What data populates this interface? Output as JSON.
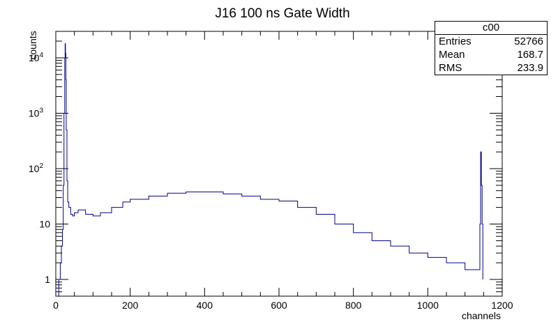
{
  "chart_data": {
    "type": "line",
    "title": "J16 100 ns Gate Width",
    "xlabel": "channels",
    "ylabel": "counts",
    "xlim": [
      0,
      1200
    ],
    "ylim": [
      0.5,
      30000
    ],
    "yscale": "log",
    "x_ticks": [
      0,
      200,
      400,
      600,
      800,
      1000,
      1200
    ],
    "y_ticks": [
      {
        "value": 1,
        "base": "1",
        "exp": ""
      },
      {
        "value": 10,
        "base": "10",
        "exp": ""
      },
      {
        "value": 100,
        "base": "10",
        "exp": "2"
      },
      {
        "value": 1000,
        "base": "10",
        "exp": "3"
      },
      {
        "value": 10000,
        "base": "10",
        "exp": "4"
      }
    ],
    "line_color": "#00008b",
    "series": [
      {
        "x": [
          8,
          12,
          15,
          18,
          20,
          22,
          24,
          25,
          26,
          27,
          28,
          30,
          32,
          35,
          40,
          45,
          50,
          60,
          80,
          100,
          120,
          150,
          180,
          200,
          250,
          300,
          350,
          400,
          450,
          500,
          550,
          600,
          650,
          700,
          750,
          800,
          850,
          900,
          950,
          1000,
          1050,
          1100,
          1140,
          1142,
          1144,
          1146,
          1148
        ],
        "y": [
          1,
          2,
          4,
          8,
          50,
          1000,
          10000,
          18000,
          12000,
          4000,
          500,
          60,
          25,
          20,
          15,
          14,
          16,
          18,
          15,
          14,
          16,
          20,
          25,
          28,
          32,
          36,
          38,
          38,
          35,
          32,
          28,
          26,
          20,
          15,
          10,
          7,
          5,
          4,
          3,
          2.5,
          2,
          1.5,
          10,
          200,
          50,
          10,
          1
        ]
      }
    ],
    "stats": {
      "name": "c00",
      "entries_label": "Entries",
      "entries": "52766",
      "mean_label": "Mean",
      "mean": "168.7",
      "rms_label": "RMS",
      "rms": "233.9"
    }
  }
}
